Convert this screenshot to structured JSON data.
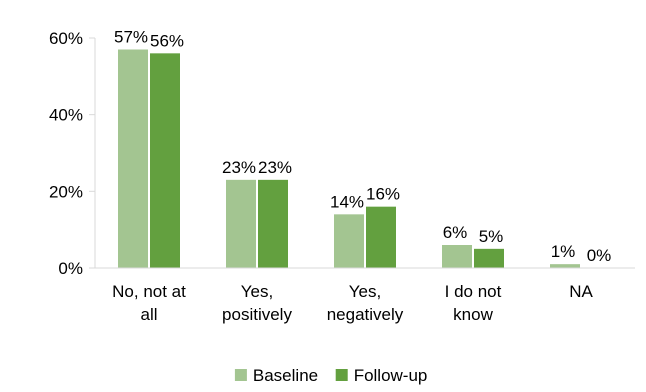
{
  "chart_data": {
    "type": "bar",
    "categories": [
      [
        "No, not at",
        "all"
      ],
      [
        "Yes,",
        "positively"
      ],
      [
        "Yes,",
        "negatively"
      ],
      [
        "I do not",
        "know"
      ],
      [
        "NA"
      ]
    ],
    "series": [
      {
        "name": "Baseline",
        "color": "#a3c591",
        "values": [
          57,
          23,
          14,
          6,
          1
        ],
        "labels": [
          "57%",
          "23%",
          "14%",
          "6%",
          "1%"
        ]
      },
      {
        "name": "Follow-up",
        "color": "#63a03f",
        "values": [
          56,
          23,
          16,
          5,
          0
        ],
        "labels": [
          "56%",
          "23%",
          "16%",
          "5%",
          "0%"
        ]
      }
    ],
    "yticks": [
      0,
      20,
      40,
      60
    ],
    "ytick_labels": [
      "0%",
      "20%",
      "40%",
      "60%"
    ],
    "ylim": [
      0,
      60
    ],
    "grid": false,
    "legend_position": "bottom-center",
    "title": "",
    "xlabel": "",
    "ylabel": ""
  }
}
